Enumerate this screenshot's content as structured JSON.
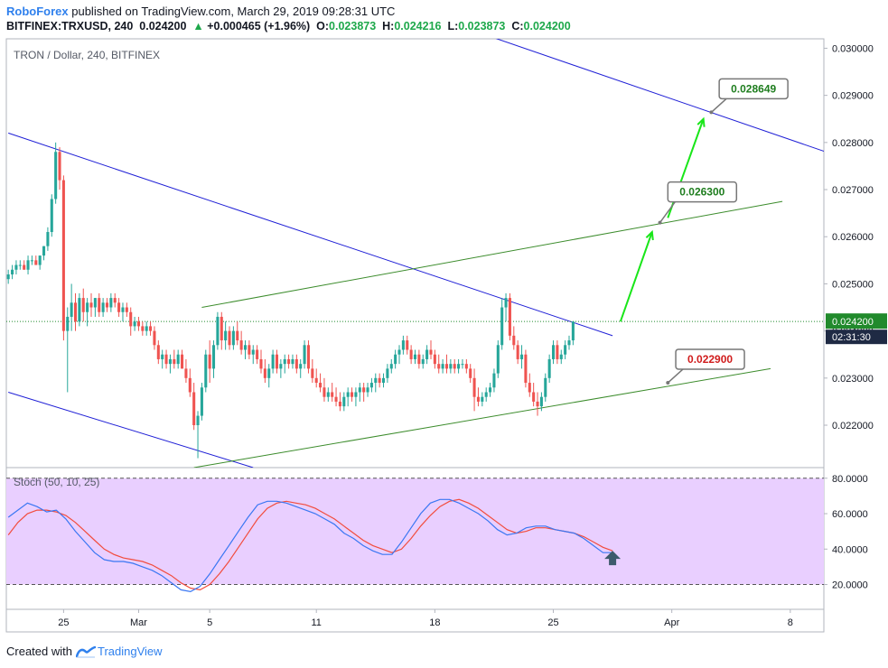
{
  "header": {
    "brand": "RoboForex",
    "publish_text": " published on TradingView.com, March 29, 2019 09:28:31 UTC",
    "symbol": "BITFINEX:TRXUSD, 240",
    "last": "0.024200",
    "change_arrow": "▲",
    "change": "+0.000465 (+1.96%)",
    "o_label": "O:",
    "o": "0.023873",
    "h_label": "H:",
    "h": "0.024216",
    "l_label": "L:",
    "l": "0.023873",
    "c_label": "C:",
    "c": "0.024200"
  },
  "footer": {
    "created_with": "Created with",
    "tradingview": "TradingView",
    "logo_icon": "tradingview-logo-icon"
  },
  "colors": {
    "up": "#26a69a",
    "down": "#ef5350",
    "channel_blue": "#1f1fd6",
    "channel_green": "#3c8c2c",
    "arrow_green": "#19e619",
    "stoch_fill": "#e9cfff",
    "stoch_k": "#3a77f3",
    "stoch_d": "#f24c3d",
    "last_price_bg": "#218a2c"
  },
  "chart_data": {
    "type": "candlestick",
    "title": "TRON / Dollar, 240, BITFINEX",
    "price_axis": {
      "ticks": [
        "0.022000",
        "0.023000",
        "0.024000",
        "0.025000",
        "0.026000",
        "0.027000",
        "0.028000",
        "0.029000",
        "0.030000"
      ],
      "range": [
        0.0211,
        0.0302
      ]
    },
    "last_price_label": "0.024200",
    "countdown_label": "02:31:30",
    "time_axis": {
      "ticks": [
        "25",
        "Mar",
        "5",
        "11",
        "18",
        "25",
        "Apr",
        "8"
      ],
      "ticks_index": [
        14,
        33,
        51,
        78,
        108,
        138,
        168,
        198
      ],
      "total_bars": 207
    },
    "ohlc": [
      [
        0.0251,
        0.0253,
        0.025,
        0.0252
      ],
      [
        0.0252,
        0.0254,
        0.0251,
        0.0253
      ],
      [
        0.0253,
        0.0255,
        0.0252,
        0.0254
      ],
      [
        0.0254,
        0.0255,
        0.0253,
        0.0254
      ],
      [
        0.0254,
        0.0255,
        0.0253,
        0.0253
      ],
      [
        0.0253,
        0.0256,
        0.0252,
        0.0255
      ],
      [
        0.0255,
        0.0256,
        0.0254,
        0.0255
      ],
      [
        0.0255,
        0.0256,
        0.0254,
        0.0254
      ],
      [
        0.0254,
        0.0256,
        0.0253,
        0.0256
      ],
      [
        0.0256,
        0.0258,
        0.0255,
        0.0258
      ],
      [
        0.0258,
        0.0262,
        0.0257,
        0.0261
      ],
      [
        0.0261,
        0.0269,
        0.026,
        0.0268
      ],
      [
        0.0268,
        0.028,
        0.0267,
        0.0278
      ],
      [
        0.0278,
        0.0279,
        0.027,
        0.0272
      ],
      [
        0.0272,
        0.0273,
        0.0238,
        0.024
      ],
      [
        0.024,
        0.0245,
        0.0227,
        0.0243
      ],
      [
        0.0243,
        0.025,
        0.024,
        0.0246
      ],
      [
        0.0246,
        0.0248,
        0.024,
        0.0242
      ],
      [
        0.0242,
        0.0248,
        0.0241,
        0.0247
      ],
      [
        0.0247,
        0.0249,
        0.0242,
        0.0244
      ],
      [
        0.0244,
        0.0247,
        0.0241,
        0.0246
      ],
      [
        0.0246,
        0.0248,
        0.0243,
        0.0245
      ],
      [
        0.0245,
        0.0247,
        0.0243,
        0.0247
      ],
      [
        0.0247,
        0.0248,
        0.0243,
        0.0244
      ],
      [
        0.0244,
        0.0247,
        0.0243,
        0.0246
      ],
      [
        0.0246,
        0.0247,
        0.0244,
        0.0245
      ],
      [
        0.0245,
        0.0248,
        0.0244,
        0.0247
      ],
      [
        0.0247,
        0.0248,
        0.0245,
        0.0246
      ],
      [
        0.0246,
        0.0247,
        0.0243,
        0.0244
      ],
      [
        0.0244,
        0.0246,
        0.0242,
        0.0245
      ],
      [
        0.0245,
        0.0246,
        0.0243,
        0.0244
      ],
      [
        0.0244,
        0.0245,
        0.0239,
        0.0241
      ],
      [
        0.0241,
        0.0243,
        0.024,
        0.0242
      ],
      [
        0.0242,
        0.0243,
        0.024,
        0.0241
      ],
      [
        0.0241,
        0.0242,
        0.0239,
        0.024
      ],
      [
        0.024,
        0.0242,
        0.0239,
        0.0241
      ],
      [
        0.0241,
        0.0242,
        0.0239,
        0.024
      ],
      [
        0.024,
        0.0241,
        0.0236,
        0.0237
      ],
      [
        0.0237,
        0.0238,
        0.0233,
        0.0234
      ],
      [
        0.0234,
        0.0236,
        0.0232,
        0.0235
      ],
      [
        0.0235,
        0.0236,
        0.0232,
        0.0233
      ],
      [
        0.0233,
        0.0235,
        0.0231,
        0.0234
      ],
      [
        0.0234,
        0.0236,
        0.0232,
        0.0233
      ],
      [
        0.0233,
        0.0236,
        0.0232,
        0.0235
      ],
      [
        0.0235,
        0.0236,
        0.0232,
        0.0232
      ],
      [
        0.0232,
        0.0234,
        0.0229,
        0.023
      ],
      [
        0.023,
        0.0232,
        0.0226,
        0.0227
      ],
      [
        0.0227,
        0.0229,
        0.0219,
        0.022
      ],
      [
        0.022,
        0.0223,
        0.0213,
        0.0222
      ],
      [
        0.0222,
        0.0229,
        0.0221,
        0.0228
      ],
      [
        0.0228,
        0.0236,
        0.0227,
        0.0235
      ],
      [
        0.0235,
        0.0238,
        0.0229,
        0.0232
      ],
      [
        0.0232,
        0.0238,
        0.023,
        0.0237
      ],
      [
        0.0237,
        0.0244,
        0.0236,
        0.0243
      ],
      [
        0.0243,
        0.0244,
        0.0236,
        0.0238
      ],
      [
        0.0238,
        0.0242,
        0.0236,
        0.024
      ],
      [
        0.024,
        0.0241,
        0.0236,
        0.0237
      ],
      [
        0.0237,
        0.0241,
        0.0236,
        0.024
      ],
      [
        0.024,
        0.0242,
        0.0237,
        0.0238
      ],
      [
        0.0238,
        0.024,
        0.0235,
        0.0236
      ],
      [
        0.0236,
        0.0238,
        0.0234,
        0.0237
      ],
      [
        0.0237,
        0.0238,
        0.0234,
        0.0235
      ],
      [
        0.0235,
        0.0237,
        0.0233,
        0.0236
      ],
      [
        0.0236,
        0.0237,
        0.0233,
        0.0234
      ],
      [
        0.0234,
        0.0236,
        0.0231,
        0.0232
      ],
      [
        0.0232,
        0.0234,
        0.0229,
        0.023
      ],
      [
        0.023,
        0.0233,
        0.0228,
        0.0232
      ],
      [
        0.0232,
        0.0236,
        0.0231,
        0.0235
      ],
      [
        0.0235,
        0.0236,
        0.0231,
        0.0232
      ],
      [
        0.0232,
        0.0234,
        0.023,
        0.0233
      ],
      [
        0.0233,
        0.0235,
        0.0231,
        0.0234
      ],
      [
        0.0234,
        0.0235,
        0.0232,
        0.0233
      ],
      [
        0.0233,
        0.0235,
        0.0232,
        0.0234
      ],
      [
        0.0234,
        0.0235,
        0.0231,
        0.0232
      ],
      [
        0.0232,
        0.0234,
        0.023,
        0.0233
      ],
      [
        0.0233,
        0.0238,
        0.0232,
        0.0237
      ],
      [
        0.0237,
        0.0238,
        0.0231,
        0.0232
      ],
      [
        0.0232,
        0.0234,
        0.0229,
        0.023
      ],
      [
        0.023,
        0.0232,
        0.0228,
        0.0229
      ],
      [
        0.0229,
        0.0231,
        0.0227,
        0.0228
      ],
      [
        0.0228,
        0.023,
        0.0225,
        0.0226
      ],
      [
        0.0226,
        0.0228,
        0.0225,
        0.0227
      ],
      [
        0.0227,
        0.0229,
        0.0225,
        0.0226
      ],
      [
        0.0226,
        0.0228,
        0.0224,
        0.0225
      ],
      [
        0.0225,
        0.0227,
        0.0223,
        0.0224
      ],
      [
        0.0224,
        0.0227,
        0.0223,
        0.0226
      ],
      [
        0.0226,
        0.0228,
        0.0224,
        0.0227
      ],
      [
        0.0227,
        0.0228,
        0.0225,
        0.0226
      ],
      [
        0.0226,
        0.0228,
        0.0224,
        0.0227
      ],
      [
        0.0227,
        0.0229,
        0.0225,
        0.0228
      ],
      [
        0.0228,
        0.0229,
        0.0225,
        0.0227
      ],
      [
        0.0227,
        0.0229,
        0.0226,
        0.0228
      ],
      [
        0.0228,
        0.023,
        0.0227,
        0.0229
      ],
      [
        0.0229,
        0.0231,
        0.0227,
        0.023
      ],
      [
        0.023,
        0.0231,
        0.0228,
        0.0229
      ],
      [
        0.0229,
        0.0231,
        0.0228,
        0.023
      ],
      [
        0.023,
        0.0233,
        0.0229,
        0.0232
      ],
      [
        0.0232,
        0.0234,
        0.0231,
        0.0233
      ],
      [
        0.0233,
        0.0236,
        0.0232,
        0.0235
      ],
      [
        0.0235,
        0.0237,
        0.0233,
        0.0236
      ],
      [
        0.0236,
        0.0239,
        0.0235,
        0.0238
      ],
      [
        0.0238,
        0.0239,
        0.0235,
        0.0236
      ],
      [
        0.0236,
        0.0237,
        0.0233,
        0.0234
      ],
      [
        0.0234,
        0.0236,
        0.0233,
        0.0235
      ],
      [
        0.0235,
        0.0236,
        0.0232,
        0.0233
      ],
      [
        0.0233,
        0.0235,
        0.0232,
        0.0234
      ],
      [
        0.0234,
        0.0237,
        0.0233,
        0.0236
      ],
      [
        0.0236,
        0.0238,
        0.0234,
        0.0235
      ],
      [
        0.0235,
        0.0236,
        0.0232,
        0.0233
      ],
      [
        0.0233,
        0.0235,
        0.0231,
        0.0232
      ],
      [
        0.0232,
        0.0234,
        0.0231,
        0.0233
      ],
      [
        0.0233,
        0.0235,
        0.0231,
        0.0232
      ],
      [
        0.0232,
        0.0234,
        0.0231,
        0.0233
      ],
      [
        0.0233,
        0.0234,
        0.0231,
        0.0232
      ],
      [
        0.0232,
        0.0234,
        0.0231,
        0.0233
      ],
      [
        0.0233,
        0.0234,
        0.0232,
        0.0233
      ],
      [
        0.0233,
        0.0234,
        0.0231,
        0.0232
      ],
      [
        0.0232,
        0.0233,
        0.0229,
        0.023
      ],
      [
        0.023,
        0.0232,
        0.0223,
        0.0226
      ],
      [
        0.0226,
        0.0228,
        0.0224,
        0.0225
      ],
      [
        0.0225,
        0.0227,
        0.0224,
        0.0226
      ],
      [
        0.0226,
        0.0228,
        0.0225,
        0.0227
      ],
      [
        0.0227,
        0.0229,
        0.0226,
        0.0228
      ],
      [
        0.0228,
        0.0232,
        0.0227,
        0.0231
      ],
      [
        0.0231,
        0.0238,
        0.023,
        0.0237
      ],
      [
        0.0237,
        0.0247,
        0.0236,
        0.0245
      ],
      [
        0.0245,
        0.0248,
        0.0242,
        0.0247
      ],
      [
        0.0247,
        0.0248,
        0.0238,
        0.0239
      ],
      [
        0.0239,
        0.0241,
        0.0236,
        0.0237
      ],
      [
        0.0237,
        0.0238,
        0.0233,
        0.0234
      ],
      [
        0.0234,
        0.0237,
        0.0232,
        0.0235
      ],
      [
        0.0235,
        0.0236,
        0.0228,
        0.0229
      ],
      [
        0.0229,
        0.0231,
        0.0226,
        0.0227
      ],
      [
        0.0227,
        0.0229,
        0.0224,
        0.0225
      ],
      [
        0.0225,
        0.0227,
        0.0222,
        0.0224
      ],
      [
        0.0224,
        0.0227,
        0.0223,
        0.0226
      ],
      [
        0.0226,
        0.0231,
        0.0225,
        0.023
      ],
      [
        0.023,
        0.0235,
        0.0229,
        0.0234
      ],
      [
        0.0234,
        0.0238,
        0.0233,
        0.0237
      ],
      [
        0.0237,
        0.0238,
        0.0233,
        0.0234
      ],
      [
        0.0234,
        0.0236,
        0.0233,
        0.0235
      ],
      [
        0.0235,
        0.0238,
        0.0234,
        0.0237
      ],
      [
        0.0237,
        0.0239,
        0.0236,
        0.0238
      ],
      [
        0.0238,
        0.0242,
        0.0237,
        0.0242
      ]
    ],
    "channels": [
      {
        "name": "descending-channel-upper",
        "color": "blue",
        "from": {
          "bar": 0,
          "price": 0.0282
        },
        "to": {
          "bar": 153,
          "price": 0.0239
        }
      },
      {
        "name": "descending-channel-lower",
        "color": "blue",
        "from": {
          "bar": 0,
          "price": 0.0227
        },
        "to": {
          "bar": 62,
          "price": 0.0211
        }
      },
      {
        "name": "descending-channel-far",
        "color": "blue",
        "from": {
          "bar": 122,
          "price": 0.03025
        },
        "to": {
          "bar": 207,
          "price": 0.0278
        }
      },
      {
        "name": "ascending-channel-upper",
        "color": "green",
        "from": {
          "bar": 49,
          "price": 0.0245
        },
        "to": {
          "bar": 196,
          "price": 0.02675
        }
      },
      {
        "name": "ascending-channel-lower",
        "color": "green",
        "from": {
          "bar": 47,
          "price": 0.0211
        },
        "to": {
          "bar": 193,
          "price": 0.0232
        }
      }
    ],
    "annotations": [
      {
        "label": "0.028649",
        "color": "green",
        "anchor": {
          "bar": 178,
          "price": 0.02864
        },
        "box": {
          "bar": 180,
          "price": 0.02914
        }
      },
      {
        "label": "0.026300",
        "color": "green",
        "anchor": {
          "bar": 165,
          "price": 0.0263
        },
        "box": {
          "bar": 167,
          "price": 0.02695
        }
      },
      {
        "label": "0.022900",
        "color": "red",
        "anchor": {
          "bar": 167,
          "price": 0.0229
        },
        "box": {
          "bar": 169,
          "price": 0.0234
        }
      }
    ],
    "arrows": [
      {
        "from": {
          "bar": 155,
          "price": 0.0242
        },
        "to": {
          "bar": 163,
          "price": 0.0261
        }
      },
      {
        "from": {
          "bar": 167,
          "price": 0.0264
        },
        "to": {
          "bar": 176,
          "price": 0.0285
        }
      }
    ],
    "stochastic": {
      "title": "Stoch (50, 10, 25)",
      "levels": [
        80,
        20
      ],
      "ticks": [
        "20.0000",
        "40.0000",
        "60.0000",
        "80.0000"
      ],
      "range": [
        6,
        86
      ],
      "k": [
        58,
        62,
        66,
        64,
        61,
        62,
        57,
        50,
        44,
        38,
        34,
        33,
        33,
        32,
        30,
        28,
        25,
        21,
        17,
        16,
        19,
        26,
        34,
        42,
        50,
        58,
        65,
        67,
        67,
        66,
        64,
        62,
        60,
        57,
        54,
        49,
        46,
        42,
        39,
        37,
        37,
        44,
        52,
        60,
        66,
        68,
        68,
        66,
        63,
        60,
        56,
        51,
        48,
        49,
        52,
        53,
        53,
        51,
        50,
        49,
        46,
        42,
        38,
        38
      ],
      "d": [
        48,
        55,
        60,
        62,
        62,
        61,
        59,
        55,
        50,
        45,
        40,
        37,
        35,
        34,
        33,
        31,
        28,
        25,
        21,
        18,
        17,
        20,
        26,
        33,
        41,
        49,
        57,
        63,
        66,
        67,
        66,
        65,
        63,
        60,
        57,
        53,
        49,
        45,
        42,
        40,
        38,
        40,
        46,
        53,
        59,
        64,
        67,
        68,
        66,
        63,
        59,
        55,
        51,
        49,
        50,
        52,
        52,
        51,
        50,
        49,
        47,
        44,
        41,
        39
      ]
    },
    "marker": {
      "name": "up-arrow-marker",
      "at_bar": 153,
      "value": 35
    }
  }
}
